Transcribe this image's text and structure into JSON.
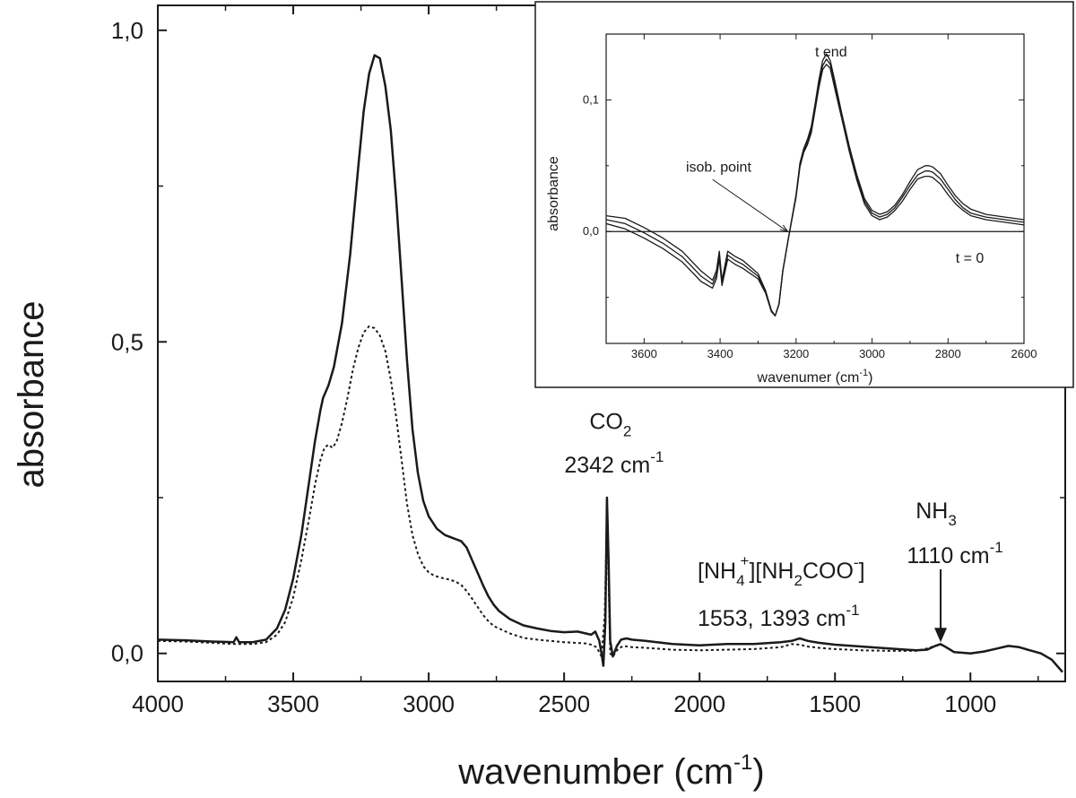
{
  "chart_data": [
    {
      "type": "line",
      "name": "main",
      "title": "",
      "xlabel": "wavenumber (cm",
      "xlabel_sup": "-1",
      "xlabel_close": ")",
      "ylabel": "absorbance",
      "xlim": [
        4000,
        650
      ],
      "ylim": [
        -0.045,
        1.04
      ],
      "xticks": [
        4000,
        3500,
        3000,
        2500,
        2000,
        1500,
        1000
      ],
      "xtick_labels": [
        "4000",
        "3500",
        "3000",
        "2500",
        "2000",
        "1500",
        "1000"
      ],
      "yticks": [
        0.0,
        0.5,
        1.0
      ],
      "ytick_labels": [
        "0,0",
        "0,5",
        "1,0"
      ],
      "grid": false,
      "series": [
        {
          "name": "solid",
          "style": "solid",
          "x": [
            4000,
            3900,
            3800,
            3720,
            3710,
            3700,
            3650,
            3600,
            3560,
            3530,
            3500,
            3470,
            3440,
            3420,
            3400,
            3390,
            3380,
            3370,
            3350,
            3320,
            3290,
            3260,
            3240,
            3220,
            3200,
            3180,
            3160,
            3140,
            3120,
            3100,
            3080,
            3060,
            3040,
            3020,
            3000,
            2970,
            2940,
            2910,
            2880,
            2860,
            2840,
            2820,
            2800,
            2780,
            2760,
            2740,
            2700,
            2650,
            2600,
            2550,
            2500,
            2450,
            2400,
            2385,
            2370,
            2362,
            2355,
            2348,
            2342,
            2336,
            2330,
            2320,
            2305,
            2290,
            2270,
            2250,
            2200,
            2100,
            2000,
            1900,
            1800,
            1700,
            1660,
            1630,
            1600,
            1560,
            1500,
            1400,
            1300,
            1200,
            1160,
            1130,
            1110,
            1090,
            1060,
            1000,
            950,
            900,
            860,
            820,
            780,
            740,
            700,
            680,
            660
          ],
          "y": [
            0.022,
            0.021,
            0.019,
            0.018,
            0.026,
            0.018,
            0.018,
            0.022,
            0.04,
            0.07,
            0.12,
            0.19,
            0.28,
            0.34,
            0.39,
            0.41,
            0.42,
            0.43,
            0.46,
            0.53,
            0.64,
            0.78,
            0.87,
            0.93,
            0.96,
            0.955,
            0.91,
            0.84,
            0.73,
            0.6,
            0.47,
            0.36,
            0.29,
            0.245,
            0.22,
            0.2,
            0.19,
            0.185,
            0.18,
            0.17,
            0.15,
            0.13,
            0.11,
            0.092,
            0.078,
            0.068,
            0.055,
            0.045,
            0.04,
            0.036,
            0.034,
            0.035,
            0.03,
            0.035,
            0.02,
            0.0,
            -0.02,
            0.05,
            0.25,
            0.15,
            0.02,
            -0.005,
            0.012,
            0.022,
            0.024,
            0.022,
            0.02,
            0.015,
            0.013,
            0.015,
            0.015,
            0.018,
            0.02,
            0.024,
            0.02,
            0.017,
            0.014,
            0.011,
            0.008,
            0.005,
            0.006,
            0.012,
            0.015,
            0.01,
            0.002,
            0.0,
            0.003,
            0.008,
            0.012,
            0.01,
            0.005,
            0.0,
            -0.01,
            -0.02,
            -0.03
          ]
        },
        {
          "name": "dotted",
          "style": "dotted",
          "x": [
            4000,
            3900,
            3800,
            3720,
            3700,
            3650,
            3600,
            3560,
            3530,
            3500,
            3470,
            3440,
            3420,
            3400,
            3385,
            3370,
            3355,
            3340,
            3320,
            3300,
            3280,
            3260,
            3240,
            3220,
            3200,
            3180,
            3160,
            3140,
            3120,
            3100,
            3080,
            3060,
            3040,
            3020,
            3000,
            2980,
            2960,
            2940,
            2920,
            2900,
            2880,
            2860,
            2840,
            2820,
            2800,
            2780,
            2760,
            2700,
            2650,
            2600,
            2500,
            2420,
            2400,
            2380,
            2362,
            2350,
            2342,
            2336,
            2330,
            2320,
            2300,
            2280,
            2250,
            2200,
            2100,
            2000,
            1900,
            1800,
            1700,
            1660,
            1630,
            1600,
            1560,
            1500,
            1400,
            1300,
            1200,
            1160,
            1130,
            1110,
            1090,
            1060,
            1000,
            950,
            900,
            860,
            820,
            780,
            740,
            700,
            680,
            660
          ],
          "y": [
            0.02,
            0.019,
            0.017,
            0.015,
            0.015,
            0.015,
            0.018,
            0.03,
            0.05,
            0.09,
            0.15,
            0.22,
            0.27,
            0.31,
            0.33,
            0.335,
            0.33,
            0.34,
            0.37,
            0.41,
            0.455,
            0.49,
            0.515,
            0.525,
            0.522,
            0.51,
            0.485,
            0.44,
            0.38,
            0.31,
            0.24,
            0.19,
            0.16,
            0.14,
            0.13,
            0.125,
            0.122,
            0.12,
            0.118,
            0.115,
            0.11,
            0.1,
            0.088,
            0.075,
            0.062,
            0.052,
            0.044,
            0.032,
            0.025,
            0.022,
            0.018,
            0.016,
            0.014,
            0.01,
            -0.005,
            0.06,
            0.22,
            0.12,
            0.0,
            -0.005,
            0.008,
            0.012,
            0.01,
            0.009,
            0.006,
            0.005,
            0.006,
            0.007,
            0.01,
            0.015,
            0.014,
            0.011,
            0.009,
            0.007,
            0.005,
            0.004,
            0.004,
            0.008,
            0.012,
            0.014,
            0.01,
            0.002,
            0.0,
            0.003,
            0.008,
            0.012,
            0.01,
            0.005,
            0.0,
            -0.01,
            -0.02,
            -0.03
          ]
        }
      ],
      "annotations": {
        "co2": {
          "label": "CO",
          "sub": "2",
          "x": 2342,
          "y": 0.36
        },
        "co2_wn": {
          "label": "2342 cm",
          "sup": "-1",
          "x": 2342,
          "y": 0.29
        },
        "carbamate_a": "[NH",
        "carbamate_a_sub": "4",
        "carbamate_a_sup": "+",
        "carbamate_b": "][NH",
        "carbamate_b_sub": "2",
        "carbamate_c": "COO",
        "carbamate_c_sup": "-",
        "carbamate_d": "]",
        "carbamate_wn": "1553, 1393 cm",
        "carbamate_wn_sup": "-1",
        "nh3": {
          "label": "NH",
          "sub": "3",
          "x": 1110
        },
        "nh3_wn": {
          "label": "1110 cm",
          "sup": "-1",
          "x": 1110
        },
        "nh3_arrow": {
          "x": 1110,
          "y_from": 0.135,
          "y_to": 0.018
        }
      }
    },
    {
      "type": "line",
      "name": "inset",
      "title": "",
      "xlabel": "wavenumer (cm",
      "xlabel_sup": "-1",
      "xlabel_close": ")",
      "ylabel": "absorbance",
      "xlim": [
        3700,
        2600
      ],
      "ylim": [
        -0.085,
        0.15
      ],
      "xticks": [
        3600,
        3400,
        3200,
        3000,
        2800,
        2600
      ],
      "xtick_labels": [
        "3600",
        "3400",
        "3200",
        "3000",
        "2800",
        "2600"
      ],
      "yticks": [
        0.0,
        0.1
      ],
      "ytick_labels": [
        "0,0",
        "0,1"
      ],
      "baseline_y": 0.0,
      "series": [
        {
          "name": "t end",
          "x": [
            3700,
            3650,
            3600,
            3550,
            3500,
            3450,
            3420,
            3410,
            3402,
            3395,
            3380,
            3370,
            3360,
            3340,
            3300,
            3280,
            3265,
            3255,
            3245,
            3235,
            3220,
            3200,
            3190,
            3180,
            3170,
            3160,
            3150,
            3140,
            3130,
            3120,
            3110,
            3100,
            3080,
            3060,
            3040,
            3020,
            3000,
            2980,
            2960,
            2940,
            2920,
            2900,
            2880,
            2860,
            2850,
            2840,
            2820,
            2800,
            2780,
            2760,
            2740,
            2700,
            2650,
            2600
          ],
          "y": [
            0.012,
            0.01,
            0.003,
            -0.005,
            -0.015,
            -0.03,
            -0.037,
            -0.03,
            -0.015,
            -0.037,
            -0.015,
            -0.017,
            -0.019,
            -0.022,
            -0.032,
            -0.045,
            -0.06,
            -0.064,
            -0.055,
            -0.03,
            -0.005,
            0.028,
            0.052,
            0.063,
            0.07,
            0.08,
            0.097,
            0.115,
            0.13,
            0.135,
            0.13,
            0.117,
            0.09,
            0.065,
            0.043,
            0.025,
            0.016,
            0.013,
            0.015,
            0.02,
            0.028,
            0.038,
            0.047,
            0.05,
            0.05,
            0.049,
            0.044,
            0.035,
            0.027,
            0.021,
            0.017,
            0.013,
            0.011,
            0.009
          ]
        },
        {
          "name": "middle",
          "x": [
            3700,
            3650,
            3600,
            3550,
            3500,
            3450,
            3420,
            3410,
            3402,
            3395,
            3380,
            3370,
            3360,
            3340,
            3300,
            3280,
            3265,
            3255,
            3245,
            3235,
            3220,
            3200,
            3190,
            3180,
            3170,
            3160,
            3150,
            3140,
            3130,
            3120,
            3110,
            3100,
            3080,
            3060,
            3040,
            3020,
            3000,
            2980,
            2960,
            2940,
            2920,
            2900,
            2880,
            2860,
            2850,
            2840,
            2820,
            2800,
            2780,
            2760,
            2740,
            2700,
            2650,
            2600
          ],
          "y": [
            0.009,
            0.006,
            -0.001,
            -0.009,
            -0.019,
            -0.034,
            -0.04,
            -0.033,
            -0.018,
            -0.039,
            -0.018,
            -0.02,
            -0.022,
            -0.025,
            -0.034,
            -0.046,
            -0.06,
            -0.064,
            -0.055,
            -0.03,
            -0.005,
            0.027,
            0.05,
            0.061,
            0.068,
            0.077,
            0.094,
            0.112,
            0.126,
            0.131,
            0.127,
            0.114,
            0.088,
            0.063,
            0.041,
            0.023,
            0.014,
            0.011,
            0.013,
            0.018,
            0.026,
            0.035,
            0.043,
            0.046,
            0.046,
            0.045,
            0.04,
            0.032,
            0.024,
            0.018,
            0.014,
            0.011,
            0.009,
            0.007
          ]
        },
        {
          "name": "t = 0",
          "x": [
            3700,
            3650,
            3600,
            3550,
            3500,
            3450,
            3420,
            3410,
            3402,
            3395,
            3380,
            3370,
            3360,
            3340,
            3300,
            3280,
            3265,
            3255,
            3245,
            3235,
            3220,
            3200,
            3190,
            3180,
            3170,
            3160,
            3150,
            3140,
            3130,
            3120,
            3110,
            3100,
            3080,
            3060,
            3040,
            3020,
            3000,
            2980,
            2960,
            2940,
            2920,
            2900,
            2880,
            2860,
            2850,
            2840,
            2820,
            2800,
            2780,
            2760,
            2740,
            2700,
            2650,
            2600
          ],
          "y": [
            0.006,
            0.002,
            -0.005,
            -0.013,
            -0.023,
            -0.038,
            -0.043,
            -0.036,
            -0.021,
            -0.041,
            -0.021,
            -0.023,
            -0.025,
            -0.028,
            -0.036,
            -0.047,
            -0.061,
            -0.064,
            -0.055,
            -0.03,
            -0.005,
            0.026,
            0.049,
            0.06,
            0.066,
            0.075,
            0.092,
            0.109,
            0.123,
            0.127,
            0.124,
            0.111,
            0.086,
            0.061,
            0.039,
            0.021,
            0.012,
            0.009,
            0.011,
            0.016,
            0.023,
            0.032,
            0.04,
            0.042,
            0.042,
            0.041,
            0.036,
            0.028,
            0.021,
            0.016,
            0.012,
            0.009,
            0.007,
            0.005
          ]
        }
      ],
      "annotations": {
        "t_end": {
          "label": "t end",
          "x": 3150,
          "y": 0.133
        },
        "t_zero": {
          "label": "t = 0",
          "x": 2780,
          "y": -0.017
        },
        "isob_point": {
          "label": "isob. point",
          "x": 3490,
          "y": 0.048
        },
        "isob_arrow": {
          "x_from": 3420,
          "y_from": 0.045,
          "x_to": 3222,
          "y_to": 0.0
        }
      }
    }
  ]
}
